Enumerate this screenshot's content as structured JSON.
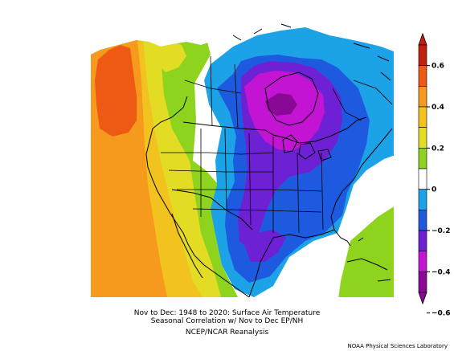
{
  "caption": {
    "line1": "Nov to Dec: 1948 to 2020: Surface Air Temperature",
    "line2": "Seasonal Correlation w/ Nov to Dec EP/NH",
    "line3": "NCEP/NCAR Reanalysis"
  },
  "credit": "NOAA Physical Sciences Laboratory",
  "colorbar": {
    "ticks": [
      "0.6",
      "0.4",
      "0.2",
      "0",
      "−0.2",
      "−0.4",
      "−0.6"
    ],
    "levels": [
      {
        "range": "0.6 to 0.7",
        "color": "#c0210f"
      },
      {
        "range": "0.5 to 0.6",
        "color": "#ee5a14"
      },
      {
        "range": "0.4 to 0.5",
        "color": "#f59a1c"
      },
      {
        "range": "0.3 to 0.4",
        "color": "#f2c31f"
      },
      {
        "range": "0.2 to 0.3",
        "color": "#e2dc24"
      },
      {
        "range": "0.1 to 0.2",
        "color": "#8ed41f"
      },
      {
        "range": "-0.1 to 0.1",
        "color": "#ffffff"
      },
      {
        "range": "-0.2 to -0.1",
        "color": "#1ca2e6"
      },
      {
        "range": "-0.3 to -0.2",
        "color": "#1e5ae0"
      },
      {
        "range": "-0.4 to -0.3",
        "color": "#6e20d4"
      },
      {
        "range": "-0.5 to -0.4",
        "color": "#c214d2"
      },
      {
        "range": "-0.6 to -0.5",
        "color": "#8a0896"
      }
    ]
  },
  "map": {
    "variable": "Surface Air Temperature",
    "region": "North America",
    "field_description": "correlation map"
  }
}
